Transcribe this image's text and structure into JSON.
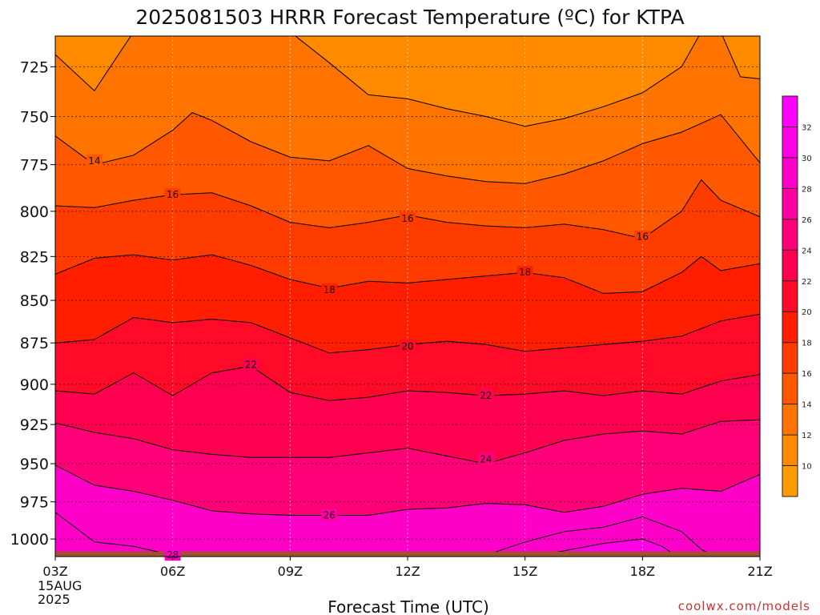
{
  "chart_data": {
    "type": "heatmap",
    "title": "2025081503 HRRR Forecast Temperature (ºC) for KTPA",
    "xlabel": "Forecast Time (UTC)",
    "ylabel": "",
    "x_ticks": [
      "03Z",
      "06Z",
      "09Z",
      "12Z",
      "15Z",
      "18Z",
      "21Z"
    ],
    "x_date_label": [
      "15AUG",
      "2025"
    ],
    "y_ticks": [
      725,
      750,
      775,
      800,
      825,
      850,
      875,
      900,
      925,
      950,
      975,
      1000
    ],
    "xlim": [
      0,
      18
    ],
    "ylim": [
      1012,
      710
    ],
    "y_scale": "log",
    "grid": true,
    "surface_pressure": 1013,
    "colorbar": {
      "ticks": [
        10,
        12,
        14,
        16,
        18,
        20,
        22,
        24,
        26,
        28,
        30,
        32
      ],
      "levels": [
        {
          "min": 8,
          "max": 10,
          "color": "#ff9b00"
        },
        {
          "min": 10,
          "max": 12,
          "color": "#ff8a00"
        },
        {
          "min": 12,
          "max": 14,
          "color": "#ff7400"
        },
        {
          "min": 14,
          "max": 16,
          "color": "#ff5800"
        },
        {
          "min": 16,
          "max": 18,
          "color": "#ff3c00"
        },
        {
          "min": 18,
          "max": 20,
          "color": "#ff1e00"
        },
        {
          "min": 20,
          "max": 22,
          "color": "#ff0a28"
        },
        {
          "min": 22,
          "max": 24,
          "color": "#ff0050"
        },
        {
          "min": 24,
          "max": 26,
          "color": "#ff0078"
        },
        {
          "min": 26,
          "max": 28,
          "color": "#ff00a0"
        },
        {
          "min": 28,
          "max": 30,
          "color": "#ff00c8"
        },
        {
          "min": 30,
          "max": 32,
          "color": "#ff00e6"
        },
        {
          "min": 32,
          "max": 34,
          "color": "#ff00ff"
        }
      ]
    },
    "isotherms": [
      {
        "value": 12,
        "points": [
          [
            0,
            719
          ],
          [
            1,
            737
          ],
          [
            2,
            708
          ],
          [
            6,
            708
          ],
          [
            7,
            723
          ],
          [
            8,
            739
          ],
          [
            9,
            741
          ],
          [
            10,
            746
          ],
          [
            11,
            750
          ],
          [
            12,
            755
          ],
          [
            13,
            751
          ],
          [
            14,
            745
          ],
          [
            15,
            738
          ],
          [
            16,
            725
          ],
          [
            16.5,
            708
          ],
          [
            17,
            708
          ],
          [
            17.5,
            730
          ],
          [
            18,
            731
          ]
        ]
      },
      {
        "value": 14,
        "points": [
          [
            0,
            760
          ],
          [
            1,
            775
          ],
          [
            2,
            770
          ],
          [
            3,
            757
          ],
          [
            3.5,
            748
          ],
          [
            4,
            752
          ],
          [
            5,
            763
          ],
          [
            6,
            771
          ],
          [
            7,
            773
          ],
          [
            8,
            765
          ],
          [
            9,
            777
          ],
          [
            10,
            781
          ],
          [
            11,
            784
          ],
          [
            12,
            785
          ],
          [
            13,
            780
          ],
          [
            14,
            773
          ],
          [
            15,
            764
          ],
          [
            16,
            758
          ],
          [
            17,
            749
          ],
          [
            18,
            774
          ],
          [
            18.5,
            776
          ],
          [
            19,
            773
          ]
        ]
      },
      {
        "value": 16,
        "points": [
          [
            0,
            797
          ],
          [
            1,
            798
          ],
          [
            2,
            794
          ],
          [
            3,
            791
          ],
          [
            4,
            790
          ],
          [
            5,
            797
          ],
          [
            6,
            806
          ],
          [
            7,
            809
          ],
          [
            8,
            806
          ],
          [
            9,
            802
          ],
          [
            10,
            806
          ],
          [
            11,
            808
          ],
          [
            12,
            809
          ],
          [
            13,
            807
          ],
          [
            14,
            810
          ],
          [
            15,
            815
          ],
          [
            16,
            800
          ],
          [
            16.5,
            783
          ],
          [
            17,
            794
          ],
          [
            18,
            803
          ],
          [
            19,
            800
          ]
        ]
      },
      {
        "value": 18,
        "points": [
          [
            0,
            835
          ],
          [
            1,
            826
          ],
          [
            2,
            824
          ],
          [
            3,
            827
          ],
          [
            4,
            824
          ],
          [
            5,
            830
          ],
          [
            6,
            838
          ],
          [
            7,
            843
          ],
          [
            8,
            839
          ],
          [
            9,
            840
          ],
          [
            10,
            838
          ],
          [
            11,
            836
          ],
          [
            12,
            834
          ],
          [
            13,
            837
          ],
          [
            14,
            846
          ],
          [
            15,
            845
          ],
          [
            16,
            834
          ],
          [
            16.5,
            825
          ],
          [
            17,
            833
          ],
          [
            18,
            829
          ],
          [
            19,
            826
          ]
        ]
      },
      {
        "value": 20,
        "points": [
          [
            0,
            875
          ],
          [
            1,
            873
          ],
          [
            2,
            860
          ],
          [
            3,
            863
          ],
          [
            4,
            861
          ],
          [
            5,
            863
          ],
          [
            6,
            872
          ],
          [
            7,
            881
          ],
          [
            8,
            879
          ],
          [
            9,
            876
          ],
          [
            10,
            874
          ],
          [
            11,
            876
          ],
          [
            12,
            880
          ],
          [
            13,
            878
          ],
          [
            14,
            876
          ],
          [
            15,
            874
          ],
          [
            16,
            871
          ],
          [
            17,
            862
          ],
          [
            18,
            858
          ],
          [
            19,
            855
          ]
        ]
      },
      {
        "value": 22,
        "points": [
          [
            0,
            904
          ],
          [
            1,
            906
          ],
          [
            2,
            893
          ],
          [
            3,
            907
          ],
          [
            4,
            893
          ],
          [
            5,
            889
          ],
          [
            6,
            905
          ],
          [
            7,
            910
          ],
          [
            8,
            908
          ],
          [
            9,
            904
          ],
          [
            10,
            905
          ],
          [
            11,
            907
          ],
          [
            12,
            906
          ],
          [
            13,
            904
          ],
          [
            14,
            907
          ],
          [
            15,
            904
          ],
          [
            16,
            906
          ],
          [
            17,
            898
          ],
          [
            18,
            894
          ],
          [
            19,
            891
          ]
        ]
      },
      {
        "value": 24,
        "points": [
          [
            0,
            924
          ],
          [
            1,
            930
          ],
          [
            2,
            934
          ],
          [
            3,
            941
          ],
          [
            4,
            944
          ],
          [
            5,
            946
          ],
          [
            6,
            946
          ],
          [
            7,
            946
          ],
          [
            8,
            943
          ],
          [
            9,
            940
          ],
          [
            10,
            945
          ],
          [
            11,
            950
          ],
          [
            12,
            943
          ],
          [
            13,
            935
          ],
          [
            14,
            931
          ],
          [
            15,
            929
          ],
          [
            16,
            931
          ],
          [
            17,
            923
          ],
          [
            18,
            922
          ],
          [
            19,
            922
          ]
        ]
      },
      {
        "value": 26,
        "points": [
          [
            0,
            951
          ],
          [
            1,
            964
          ],
          [
            2,
            968
          ],
          [
            3,
            974
          ],
          [
            4,
            981
          ],
          [
            5,
            983
          ],
          [
            6,
            984
          ],
          [
            7,
            984
          ],
          [
            8,
            984
          ],
          [
            9,
            980
          ],
          [
            10,
            979
          ],
          [
            11,
            976
          ],
          [
            12,
            977
          ],
          [
            13,
            982
          ],
          [
            14,
            978
          ],
          [
            15,
            970
          ],
          [
            16,
            966
          ],
          [
            17,
            968
          ],
          [
            18,
            957
          ],
          [
            19,
            952
          ]
        ]
      },
      {
        "value": 28,
        "points": [
          [
            0,
            982
          ],
          [
            1,
            1002
          ],
          [
            2,
            1005
          ],
          [
            3,
            1011
          ],
          [
            4,
            1012
          ],
          [
            5,
            1016
          ]
        ]
      },
      {
        "value": 28,
        "points": [
          [
            10.5,
            1017
          ],
          [
            11,
            1011
          ],
          [
            12,
            1002
          ],
          [
            13,
            995
          ],
          [
            14,
            992
          ],
          [
            15,
            985
          ],
          [
            16,
            995
          ],
          [
            16.5,
            1007
          ],
          [
            17,
            1014
          ]
        ]
      },
      {
        "value": 28,
        "points": [
          [
            19,
            1015
          ],
          [
            18.7,
            1002
          ],
          [
            19,
            993
          ],
          [
            20,
            982
          ],
          [
            21,
            978
          ],
          [
            22,
            975
          ]
        ]
      },
      {
        "value": 30,
        "points": [
          [
            11,
            1017
          ],
          [
            12,
            1013
          ],
          [
            13,
            1008
          ],
          [
            14,
            1003
          ],
          [
            15,
            1000
          ],
          [
            15.5,
            1005
          ],
          [
            16,
            1014
          ],
          [
            16.3,
            1017
          ]
        ]
      }
    ],
    "contour_labels": [
      {
        "value": 14,
        "x": 1,
        "p": 773
      },
      {
        "value": 16,
        "x": 3,
        "p": 791
      },
      {
        "value": 16,
        "x": 9,
        "p": 804
      },
      {
        "value": 16,
        "x": 15,
        "p": 814
      },
      {
        "value": 18,
        "x": 7,
        "p": 844
      },
      {
        "value": 18,
        "x": 12,
        "p": 834
      },
      {
        "value": 20,
        "x": 9,
        "p": 877
      },
      {
        "value": 22,
        "x": 5,
        "p": 888
      },
      {
        "value": 22,
        "x": 11,
        "p": 907
      },
      {
        "value": 24,
        "x": 11,
        "p": 947
      },
      {
        "value": 26,
        "x": 7,
        "p": 984
      },
      {
        "value": 28,
        "x": 3,
        "p": 1011
      }
    ]
  },
  "credit": "coolwx.com/models"
}
